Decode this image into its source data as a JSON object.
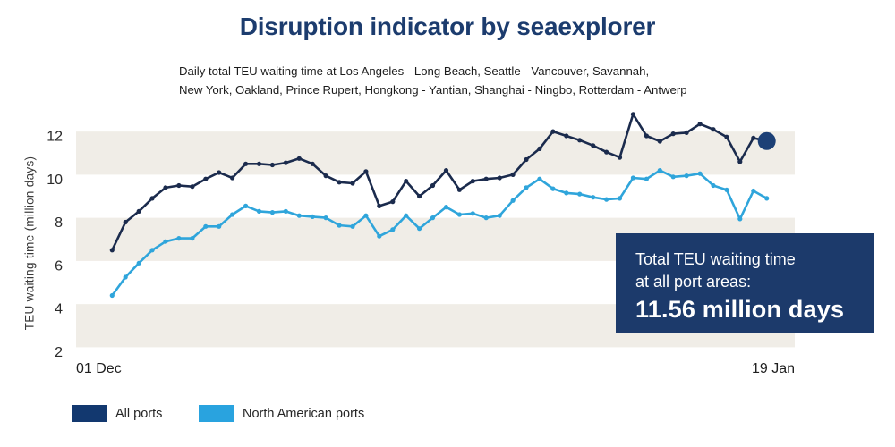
{
  "header": {
    "title": "Disruption indicator by seaexplorer",
    "subtitle_line1": "Daily total TEU waiting time at Los Angeles - Long Beach, Seattle - Vancouver, Savannah,",
    "subtitle_line2": "New York, Oakland, Prince Rupert, Hongkong - Yantian, Shanghai - Ningbo, Rotterdam - Antwerp"
  },
  "colors": {
    "title_navy": "#1C3C6E",
    "navy_line": "#1B2B4D",
    "light_blue_line": "#2FA5DB",
    "end_dot": "#1D4076",
    "band": "#F0EDE7",
    "callout_bg": "#1C3A6B",
    "legend_navy": "#12386F",
    "legend_light_blue": "#29A3DF"
  },
  "y_axis": {
    "label": "TEU waiting time (million days)"
  },
  "x_axis": {
    "start_label": "01 Dec",
    "end_label": "19 Jan"
  },
  "callout": {
    "line1": "Total TEU waiting time",
    "line2": "at all port areas:",
    "value": "11.56 million days"
  },
  "legend": {
    "items": [
      {
        "label": "All ports",
        "color": "#12386F"
      },
      {
        "label": "North American ports",
        "color": "#29A3DF"
      }
    ]
  },
  "chart_data": {
    "type": "line",
    "title": "Disruption indicator by seaexplorer",
    "subtitle": "Daily total TEU waiting time at Los Angeles - Long Beach, Seattle - Vancouver, Savannah, New York, Oakland, Prince Rupert, Hongkong - Yantian, Shanghai - Ningbo, Rotterdam - Antwerp",
    "xlabel": "",
    "ylabel": "TEU waiting time (million days)",
    "yticks": [
      2,
      4,
      6,
      8,
      10,
      12
    ],
    "ylim": [
      2,
      12.9
    ],
    "x_tick_labels": [
      "01 Dec",
      "19 Jan"
    ],
    "x_unit": "day",
    "n_points": 50,
    "grid": false,
    "background_bands": [
      [
        10,
        12
      ],
      [
        6,
        8
      ],
      [
        2,
        4
      ]
    ],
    "legend_position": "bottom-left",
    "series": [
      {
        "name": "All ports",
        "color": "#1B2B4D",
        "values": [
          6.5,
          7.8,
          8.3,
          8.9,
          9.4,
          9.5,
          9.45,
          9.8,
          10.1,
          9.85,
          10.5,
          10.5,
          10.45,
          10.55,
          10.75,
          10.5,
          9.95,
          9.65,
          9.6,
          10.15,
          8.55,
          8.75,
          9.7,
          9.0,
          9.5,
          10.2,
          9.3,
          9.7,
          9.8,
          9.85,
          10.0,
          10.7,
          11.2,
          12.0,
          11.8,
          11.6,
          11.35,
          11.05,
          10.8,
          12.8,
          11.8,
          11.55,
          11.9,
          11.95,
          12.35,
          12.1,
          11.75,
          10.6,
          11.7,
          11.56
        ]
      },
      {
        "name": "North American ports",
        "color": "#2FA5DB",
        "values": [
          4.4,
          5.25,
          5.9,
          6.5,
          6.9,
          7.05,
          7.05,
          7.6,
          7.6,
          8.15,
          8.55,
          8.3,
          8.25,
          8.3,
          8.1,
          8.05,
          8.0,
          7.65,
          7.6,
          8.1,
          7.15,
          7.45,
          8.1,
          7.5,
          8.0,
          8.5,
          8.15,
          8.2,
          8.0,
          8.1,
          8.8,
          9.4,
          9.8,
          9.35,
          9.15,
          9.1,
          8.95,
          8.85,
          8.9,
          9.85,
          9.8,
          10.2,
          9.9,
          9.95,
          10.05,
          9.5,
          9.3,
          7.95,
          9.25,
          8.9
        ]
      }
    ],
    "end_marker": {
      "series": "All ports",
      "value": 11.56,
      "color": "#1D4076",
      "radius": 10
    }
  }
}
